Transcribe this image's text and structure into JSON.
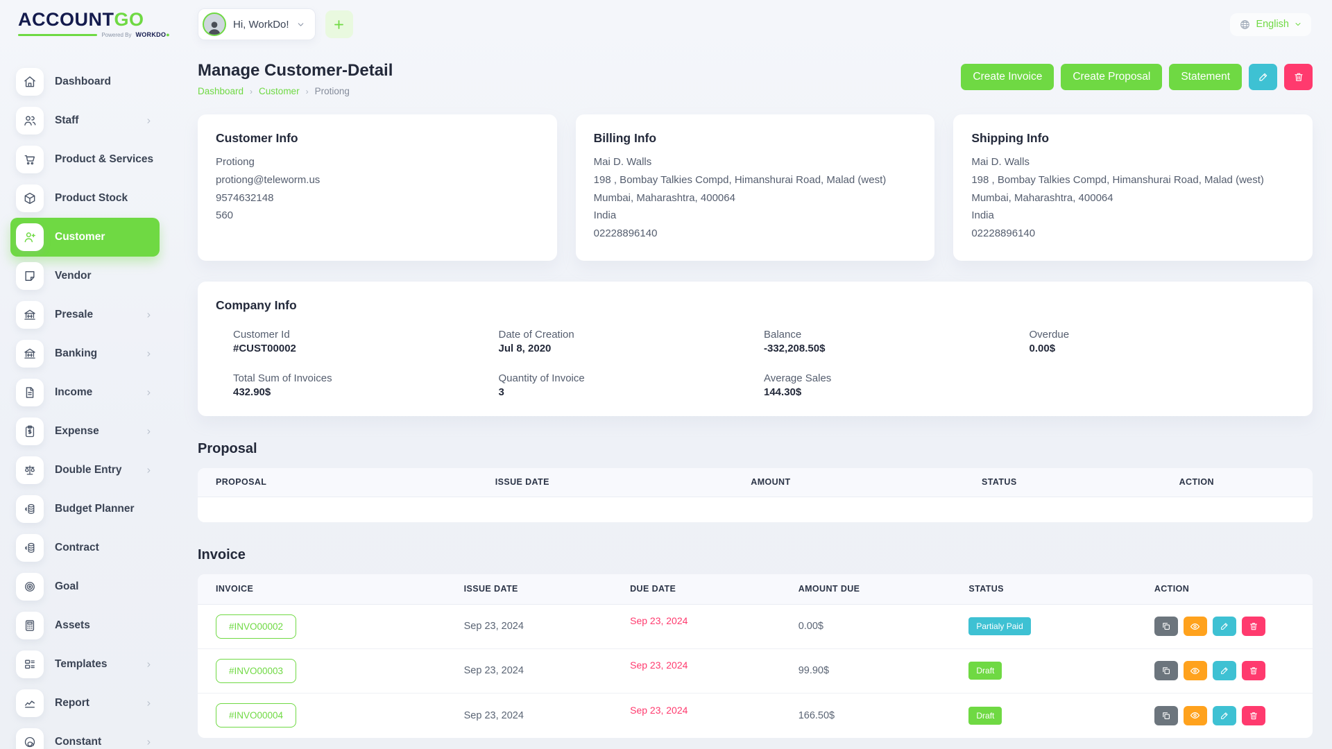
{
  "brand": {
    "name_primary": "ACCOUNT",
    "name_accent": "GO",
    "tagline_prefix": "Powered By",
    "tagline_brand": "WORKDO"
  },
  "topbar": {
    "greeting": "Hi, WorkDo!",
    "language": "English"
  },
  "sidebar": {
    "items": [
      {
        "label": "Dashboard",
        "icon": "home-icon",
        "chevron": false,
        "active": false
      },
      {
        "label": "Staff",
        "icon": "users-icon",
        "chevron": true,
        "active": false
      },
      {
        "label": "Product & Services",
        "icon": "cart-icon",
        "chevron": false,
        "active": false
      },
      {
        "label": "Product Stock",
        "icon": "cube-icon",
        "chevron": false,
        "active": false
      },
      {
        "label": "Customer",
        "icon": "user-plus-icon",
        "chevron": false,
        "active": true
      },
      {
        "label": "Vendor",
        "icon": "note-icon",
        "chevron": false,
        "active": false
      },
      {
        "label": "Presale",
        "icon": "bank-icon",
        "chevron": true,
        "active": false
      },
      {
        "label": "Banking",
        "icon": "bank-icon",
        "chevron": true,
        "active": false
      },
      {
        "label": "Income",
        "icon": "document-icon",
        "chevron": true,
        "active": false
      },
      {
        "label": "Expense",
        "icon": "clipboard-dollar-icon",
        "chevron": true,
        "active": false
      },
      {
        "label": "Double Entry",
        "icon": "scale-icon",
        "chevron": true,
        "active": false
      },
      {
        "label": "Budget Planner",
        "icon": "coins-icon",
        "chevron": false,
        "active": false
      },
      {
        "label": "Contract",
        "icon": "coins-icon",
        "chevron": false,
        "active": false
      },
      {
        "label": "Goal",
        "icon": "target-icon",
        "chevron": false,
        "active": false
      },
      {
        "label": "Assets",
        "icon": "calculator-icon",
        "chevron": false,
        "active": false
      },
      {
        "label": "Templates",
        "icon": "layout-icon",
        "chevron": true,
        "active": false
      },
      {
        "label": "Report",
        "icon": "chart-icon",
        "chevron": true,
        "active": false
      },
      {
        "label": "Constant",
        "icon": "gauge-icon",
        "chevron": true,
        "active": false
      }
    ]
  },
  "page": {
    "title": "Manage Customer-Detail",
    "breadcrumb": [
      "Dashboard",
      "Customer",
      "Protiong"
    ]
  },
  "actions": {
    "create_invoice": "Create Invoice",
    "create_proposal": "Create Proposal",
    "statement": "Statement"
  },
  "info_cards": [
    {
      "key": "customer-info",
      "title": "Customer Info",
      "lines": [
        "Protiong",
        "protiong@teleworm.us",
        "9574632148",
        "560"
      ]
    },
    {
      "key": "billing-info",
      "title": "Billing Info",
      "lines": [
        "Mai D. Walls",
        "198 , Bombay Talkies Compd, Himanshurai Road, Malad (west)",
        "Mumbai, Maharashtra, 400064",
        "India",
        "02228896140"
      ]
    },
    {
      "key": "shipping-info",
      "title": "Shipping Info",
      "lines": [
        "Mai D. Walls",
        "198 , Bombay Talkies Compd, Himanshurai Road, Malad (west)",
        "Mumbai, Maharashtra, 400064",
        "India",
        "02228896140"
      ]
    }
  ],
  "company_info": {
    "title": "Company Info",
    "fields": [
      {
        "label": "Customer Id",
        "value": "#CUST00002"
      },
      {
        "label": "Date of Creation",
        "value": "Jul 8, 2020"
      },
      {
        "label": "Balance",
        "value": "-332,208.50$"
      },
      {
        "label": "Overdue",
        "value": "0.00$"
      },
      {
        "label": "Total Sum of Invoices",
        "value": "432.90$"
      },
      {
        "label": "Quantity of Invoice",
        "value": "3"
      },
      {
        "label": "Average Sales",
        "value": "144.30$"
      }
    ]
  },
  "proposal": {
    "title": "Proposal",
    "headers": [
      "PROPOSAL",
      "ISSUE DATE",
      "AMOUNT",
      "STATUS",
      "ACTION"
    ],
    "rows": []
  },
  "invoice": {
    "title": "Invoice",
    "headers": [
      "INVOICE",
      "ISSUE DATE",
      "DUE DATE",
      "AMOUNT DUE",
      "STATUS",
      "ACTION"
    ],
    "rows": [
      {
        "number": "#INVO00002",
        "issue_date": "Sep 23, 2024",
        "due_date": "Sep 23, 2024",
        "amount_due": "0.00$",
        "status": "Partialy Paid",
        "status_color": "#3ec1d3"
      },
      {
        "number": "#INVO00003",
        "issue_date": "Sep 23, 2024",
        "due_date": "Sep 23, 2024",
        "amount_due": "99.90$",
        "status": "Draft",
        "status_color": "#6fd943"
      },
      {
        "number": "#INVO00004",
        "issue_date": "Sep 23, 2024",
        "due_date": "Sep 23, 2024",
        "amount_due": "166.50$",
        "status": "Draft",
        "status_color": "#6fd943"
      }
    ]
  },
  "colors": {
    "primary_green": "#6fd943",
    "teal": "#3ec1d3",
    "pink": "#ff3a6e",
    "orange": "#ffa21d",
    "gray_action": "#6c757d",
    "navy": "#141b4d"
  }
}
